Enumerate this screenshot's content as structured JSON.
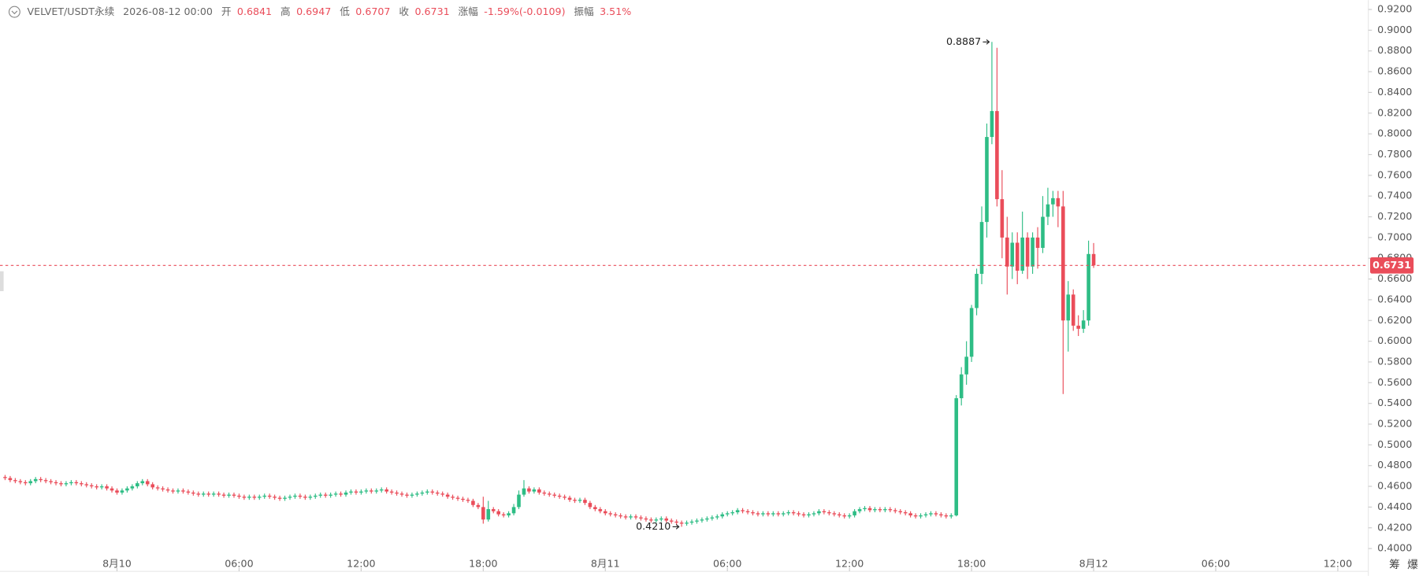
{
  "chart_data": {
    "type": "candlestick",
    "header": {
      "symbol": "VELVET/USDT永续",
      "datetime": "2026-08-12 00:00",
      "open_label": "开",
      "high_label": "高",
      "low_label": "低",
      "close_label": "收",
      "change_label": "涨幅",
      "change": "-1.59%(-0.0109)",
      "amplitude_label": "振幅",
      "amplitude": "3.51%"
    },
    "up_color": "#2ebd85",
    "down_color": "#ea4d5a",
    "max_label": "0.8887",
    "min_label": "0.4210",
    "corner_buttons": [
      "筹",
      "爆"
    ],
    "xlim": [
      -1,
      268
    ],
    "xticks": [
      {
        "value": 22,
        "label": "8月10"
      },
      {
        "value": 46,
        "label": "06:00"
      },
      {
        "value": 70,
        "label": "12:00"
      },
      {
        "value": 94,
        "label": "18:00"
      },
      {
        "value": 118,
        "label": "8月11"
      },
      {
        "value": 142,
        "label": "06:00"
      },
      {
        "value": 166,
        "label": "12:00"
      },
      {
        "value": 190,
        "label": "18:00"
      },
      {
        "value": 214,
        "label": "8月12"
      },
      {
        "value": 238,
        "label": "06:00"
      },
      {
        "value": 262,
        "label": "12:00"
      }
    ],
    "ylim": [
      0.378,
      0.929
    ],
    "yticks": [
      {
        "value": 0.4,
        "label": "0.4000"
      },
      {
        "value": 0.42,
        "label": "0.4200"
      },
      {
        "value": 0.44,
        "label": "0.4400"
      },
      {
        "value": 0.46,
        "label": "0.4600"
      },
      {
        "value": 0.48,
        "label": "0.4800"
      },
      {
        "value": 0.5,
        "label": "0.5000"
      },
      {
        "value": 0.52,
        "label": "0.5200"
      },
      {
        "value": 0.54,
        "label": "0.5400"
      },
      {
        "value": 0.56,
        "label": "0.5600"
      },
      {
        "value": 0.58,
        "label": "0.5800"
      },
      {
        "value": 0.6,
        "label": "0.6000"
      },
      {
        "value": 0.62,
        "label": "0.6200"
      },
      {
        "value": 0.64,
        "label": "0.6400"
      },
      {
        "value": 0.66,
        "label": "0.6600"
      },
      {
        "value": 0.68,
        "label": "0.6800"
      },
      {
        "value": 0.7,
        "label": "0.7000"
      },
      {
        "value": 0.72,
        "label": "0.7200"
      },
      {
        "value": 0.74,
        "label": "0.7400"
      },
      {
        "value": 0.76,
        "label": "0.7600"
      },
      {
        "value": 0.78,
        "label": "0.7800"
      },
      {
        "value": 0.8,
        "label": "0.8000"
      },
      {
        "value": 0.82,
        "label": "0.8200"
      },
      {
        "value": 0.84,
        "label": "0.8400"
      },
      {
        "value": 0.86,
        "label": "0.8600"
      },
      {
        "value": 0.88,
        "label": "0.8800"
      },
      {
        "value": 0.9,
        "label": "0.9000"
      },
      {
        "value": 0.92,
        "label": "0.9200"
      }
    ],
    "open": [
      0.469,
      0.468,
      0.466,
      0.465,
      0.464,
      0.463,
      0.465,
      0.467,
      0.466,
      0.465,
      0.464,
      0.463,
      0.462,
      0.463,
      0.464,
      0.463,
      0.462,
      0.461,
      0.46,
      0.459,
      0.46,
      0.458,
      0.456,
      0.454,
      0.456,
      0.458,
      0.46,
      0.463,
      0.465,
      0.462,
      0.459,
      0.458,
      0.457,
      0.456,
      0.455,
      0.456,
      0.455,
      0.454,
      0.453,
      0.452,
      0.453,
      0.452,
      0.453,
      0.452,
      0.451,
      0.452,
      0.451,
      0.45,
      0.449,
      0.45,
      0.449,
      0.45,
      0.451,
      0.45,
      0.449,
      0.448,
      0.449,
      0.45,
      0.451,
      0.45,
      0.449,
      0.45,
      0.451,
      0.452,
      0.451,
      0.452,
      0.453,
      0.452,
      0.454,
      0.455,
      0.454,
      0.455,
      0.456,
      0.455,
      0.456,
      0.457,
      0.455,
      0.454,
      0.453,
      0.452,
      0.451,
      0.452,
      0.453,
      0.454,
      0.455,
      0.454,
      0.453,
      0.452,
      0.45,
      0.449,
      0.448,
      0.447,
      0.446,
      0.442,
      0.44,
      0.428,
      0.438,
      0.436,
      0.433,
      0.432,
      0.434,
      0.44,
      0.452,
      0.458,
      0.455,
      0.457,
      0.454,
      0.453,
      0.452,
      0.451,
      0.45,
      0.449,
      0.447,
      0.446,
      0.447,
      0.444,
      0.44,
      0.438,
      0.436,
      0.434,
      0.433,
      0.432,
      0.431,
      0.43,
      0.431,
      0.43,
      0.429,
      0.428,
      0.427,
      0.428,
      0.429,
      0.427,
      0.426,
      0.425,
      0.424,
      0.425,
      0.426,
      0.427,
      0.428,
      0.429,
      0.43,
      0.431,
      0.433,
      0.434,
      0.435,
      0.437,
      0.436,
      0.435,
      0.434,
      0.433,
      0.434,
      0.433,
      0.434,
      0.433,
      0.434,
      0.435,
      0.434,
      0.433,
      0.432,
      0.433,
      0.434,
      0.436,
      0.435,
      0.434,
      0.433,
      0.432,
      0.431,
      0.432,
      0.436,
      0.438,
      0.439,
      0.437,
      0.438,
      0.437,
      0.438,
      0.437,
      0.436,
      0.435,
      0.434,
      0.432,
      0.431,
      0.432,
      0.433,
      0.434,
      0.433,
      0.432,
      0.431,
      0.432,
      0.545,
      0.568,
      0.585,
      0.632,
      0.665,
      0.715,
      0.797,
      0.822,
      0.737,
      0.7,
      0.672,
      0.695,
      0.668,
      0.7,
      0.672,
      0.7,
      0.69,
      0.72,
      0.732,
      0.738,
      0.73,
      0.62,
      0.645,
      0.615,
      0.612,
      0.62,
      0.6841
    ],
    "high": [
      0.471,
      0.47,
      0.468,
      0.467,
      0.466,
      0.467,
      0.469,
      0.469,
      0.468,
      0.467,
      0.466,
      0.465,
      0.465,
      0.466,
      0.466,
      0.465,
      0.464,
      0.463,
      0.462,
      0.462,
      0.462,
      0.46,
      0.458,
      0.458,
      0.46,
      0.462,
      0.465,
      0.467,
      0.467,
      0.464,
      0.461,
      0.46,
      0.459,
      0.458,
      0.458,
      0.458,
      0.457,
      0.456,
      0.455,
      0.455,
      0.455,
      0.455,
      0.455,
      0.454,
      0.454,
      0.454,
      0.453,
      0.452,
      0.452,
      0.452,
      0.452,
      0.453,
      0.453,
      0.452,
      0.451,
      0.451,
      0.452,
      0.453,
      0.453,
      0.452,
      0.452,
      0.453,
      0.454,
      0.454,
      0.454,
      0.455,
      0.455,
      0.456,
      0.457,
      0.457,
      0.457,
      0.458,
      0.458,
      0.458,
      0.459,
      0.459,
      0.457,
      0.456,
      0.455,
      0.454,
      0.454,
      0.455,
      0.456,
      0.457,
      0.457,
      0.456,
      0.455,
      0.454,
      0.452,
      0.451,
      0.45,
      0.449,
      0.448,
      0.444,
      0.45,
      0.446,
      0.44,
      0.438,
      0.435,
      0.436,
      0.443,
      0.456,
      0.466,
      0.46,
      0.459,
      0.459,
      0.456,
      0.455,
      0.454,
      0.453,
      0.452,
      0.451,
      0.449,
      0.449,
      0.449,
      0.446,
      0.442,
      0.44,
      0.438,
      0.436,
      0.435,
      0.434,
      0.433,
      0.433,
      0.433,
      0.432,
      0.431,
      0.43,
      0.43,
      0.431,
      0.431,
      0.429,
      0.428,
      0.427,
      0.427,
      0.428,
      0.429,
      0.43,
      0.431,
      0.432,
      0.433,
      0.435,
      0.436,
      0.437,
      0.439,
      0.439,
      0.438,
      0.437,
      0.436,
      0.436,
      0.436,
      0.436,
      0.436,
      0.436,
      0.437,
      0.437,
      0.436,
      0.435,
      0.435,
      0.436,
      0.438,
      0.438,
      0.437,
      0.436,
      0.435,
      0.434,
      0.434,
      0.438,
      0.44,
      0.441,
      0.441,
      0.44,
      0.44,
      0.44,
      0.44,
      0.439,
      0.438,
      0.437,
      0.436,
      0.434,
      0.434,
      0.435,
      0.436,
      0.436,
      0.435,
      0.434,
      0.434,
      0.548,
      0.575,
      0.6,
      0.635,
      0.67,
      0.73,
      0.81,
      0.8887,
      0.883,
      0.765,
      0.72,
      0.705,
      0.705,
      0.725,
      0.705,
      0.705,
      0.71,
      0.74,
      0.748,
      0.745,
      0.745,
      0.745,
      0.658,
      0.65,
      0.625,
      0.63,
      0.697,
      0.6947
    ],
    "low": [
      0.466,
      0.464,
      0.463,
      0.462,
      0.461,
      0.461,
      0.463,
      0.464,
      0.463,
      0.462,
      0.461,
      0.46,
      0.46,
      0.461,
      0.461,
      0.46,
      0.459,
      0.458,
      0.457,
      0.457,
      0.456,
      0.454,
      0.452,
      0.452,
      0.454,
      0.456,
      0.458,
      0.461,
      0.46,
      0.457,
      0.456,
      0.455,
      0.454,
      0.453,
      0.453,
      0.453,
      0.452,
      0.451,
      0.45,
      0.45,
      0.45,
      0.45,
      0.45,
      0.449,
      0.449,
      0.449,
      0.448,
      0.447,
      0.447,
      0.447,
      0.447,
      0.448,
      0.448,
      0.447,
      0.446,
      0.446,
      0.447,
      0.448,
      0.448,
      0.447,
      0.447,
      0.448,
      0.449,
      0.449,
      0.449,
      0.45,
      0.45,
      0.45,
      0.452,
      0.452,
      0.452,
      0.453,
      0.453,
      0.453,
      0.454,
      0.453,
      0.452,
      0.451,
      0.45,
      0.449,
      0.449,
      0.45,
      0.451,
      0.452,
      0.452,
      0.451,
      0.45,
      0.448,
      0.447,
      0.446,
      0.445,
      0.444,
      0.44,
      0.438,
      0.424,
      0.426,
      0.434,
      0.431,
      0.43,
      0.43,
      0.432,
      0.438,
      0.45,
      0.453,
      0.453,
      0.452,
      0.451,
      0.45,
      0.449,
      0.448,
      0.447,
      0.445,
      0.444,
      0.444,
      0.442,
      0.438,
      0.436,
      0.434,
      0.432,
      0.431,
      0.43,
      0.429,
      0.428,
      0.428,
      0.428,
      0.427,
      0.426,
      0.425,
      0.425,
      0.426,
      0.425,
      0.424,
      0.423,
      0.421,
      0.422,
      0.423,
      0.424,
      0.425,
      0.426,
      0.427,
      0.428,
      0.429,
      0.431,
      0.432,
      0.433,
      0.434,
      0.433,
      0.432,
      0.431,
      0.431,
      0.431,
      0.431,
      0.431,
      0.431,
      0.432,
      0.432,
      0.431,
      0.43,
      0.43,
      0.431,
      0.432,
      0.433,
      0.432,
      0.431,
      0.43,
      0.429,
      0.429,
      0.43,
      0.434,
      0.436,
      0.435,
      0.435,
      0.435,
      0.435,
      0.435,
      0.434,
      0.433,
      0.432,
      0.43,
      0.429,
      0.429,
      0.43,
      0.431,
      0.431,
      0.43,
      0.429,
      0.429,
      0.431,
      0.538,
      0.558,
      0.58,
      0.625,
      0.655,
      0.7,
      0.79,
      0.73,
      0.68,
      0.645,
      0.66,
      0.655,
      0.665,
      0.66,
      0.665,
      0.67,
      0.685,
      0.712,
      0.72,
      0.71,
      0.549,
      0.59,
      0.61,
      0.605,
      0.608,
      0.615,
      0.6707
    ],
    "close": [
      0.468,
      0.466,
      0.465,
      0.464,
      0.463,
      0.465,
      0.467,
      0.466,
      0.465,
      0.464,
      0.463,
      0.462,
      0.463,
      0.464,
      0.463,
      0.462,
      0.461,
      0.46,
      0.459,
      0.46,
      0.458,
      0.456,
      0.454,
      0.456,
      0.458,
      0.46,
      0.463,
      0.465,
      0.462,
      0.459,
      0.458,
      0.457,
      0.456,
      0.455,
      0.456,
      0.455,
      0.454,
      0.453,
      0.452,
      0.453,
      0.452,
      0.453,
      0.452,
      0.451,
      0.452,
      0.451,
      0.45,
      0.449,
      0.45,
      0.449,
      0.45,
      0.451,
      0.45,
      0.449,
      0.448,
      0.449,
      0.45,
      0.451,
      0.45,
      0.449,
      0.45,
      0.451,
      0.452,
      0.451,
      0.452,
      0.453,
      0.452,
      0.454,
      0.455,
      0.454,
      0.455,
      0.456,
      0.455,
      0.456,
      0.457,
      0.455,
      0.454,
      0.453,
      0.452,
      0.451,
      0.452,
      0.453,
      0.454,
      0.455,
      0.454,
      0.453,
      0.452,
      0.45,
      0.449,
      0.448,
      0.447,
      0.446,
      0.442,
      0.44,
      0.428,
      0.438,
      0.436,
      0.433,
      0.432,
      0.434,
      0.44,
      0.452,
      0.458,
      0.455,
      0.457,
      0.454,
      0.453,
      0.452,
      0.451,
      0.45,
      0.449,
      0.447,
      0.446,
      0.447,
      0.444,
      0.44,
      0.438,
      0.436,
      0.434,
      0.433,
      0.432,
      0.431,
      0.43,
      0.431,
      0.43,
      0.429,
      0.428,
      0.427,
      0.428,
      0.429,
      0.427,
      0.426,
      0.425,
      0.424,
      0.425,
      0.426,
      0.427,
      0.428,
      0.429,
      0.43,
      0.431,
      0.433,
      0.434,
      0.435,
      0.437,
      0.436,
      0.435,
      0.434,
      0.433,
      0.434,
      0.433,
      0.434,
      0.433,
      0.434,
      0.435,
      0.434,
      0.433,
      0.432,
      0.433,
      0.434,
      0.436,
      0.435,
      0.434,
      0.433,
      0.432,
      0.431,
      0.432,
      0.436,
      0.438,
      0.439,
      0.437,
      0.438,
      0.437,
      0.438,
      0.437,
      0.436,
      0.435,
      0.434,
      0.432,
      0.431,
      0.432,
      0.433,
      0.434,
      0.433,
      0.432,
      0.431,
      0.432,
      0.545,
      0.568,
      0.585,
      0.632,
      0.665,
      0.715,
      0.797,
      0.822,
      0.737,
      0.7,
      0.672,
      0.695,
      0.668,
      0.7,
      0.672,
      0.7,
      0.69,
      0.72,
      0.732,
      0.738,
      0.73,
      0.62,
      0.645,
      0.615,
      0.612,
      0.62,
      0.6841,
      0.6731
    ]
  }
}
